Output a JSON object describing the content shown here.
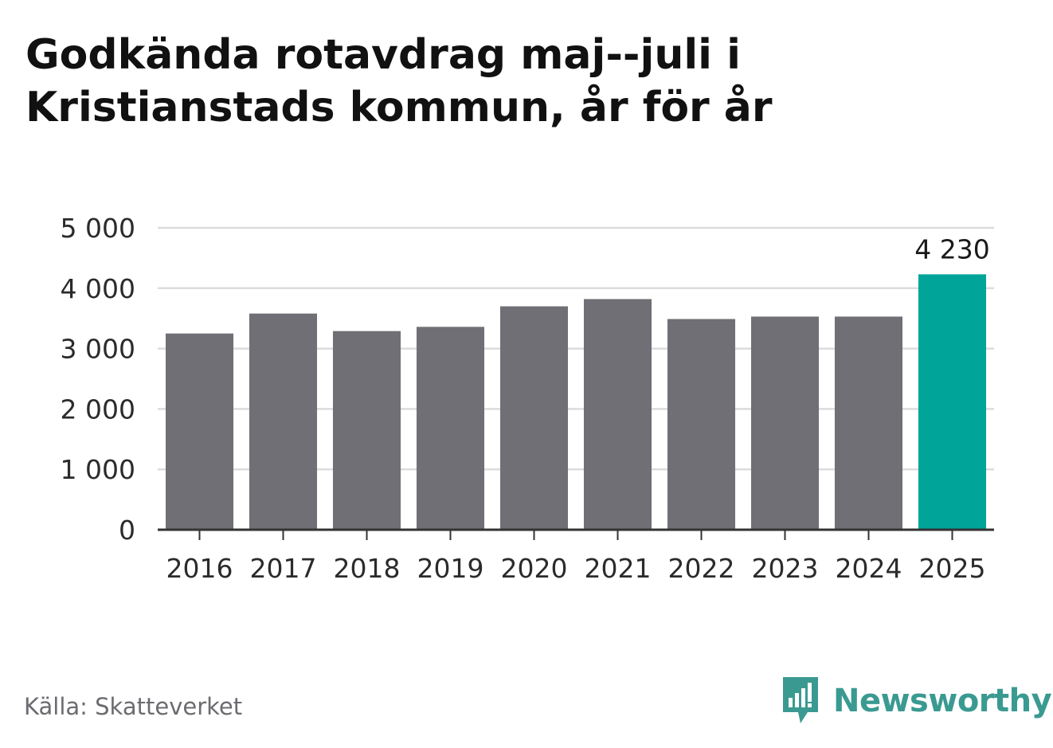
{
  "title": "Godkända rotavdrag maj--juli i Kristianstads kommun, år för år",
  "source": "Källa: Skatteverket",
  "brand": {
    "name": "Newsworthy",
    "icon": "newsworthy-logo-icon",
    "color": "#3a9a91"
  },
  "colors": {
    "bar": "#706f75",
    "highlight": "#00a499",
    "grid": "#dcdcdc",
    "axis": "#333333"
  },
  "chart_data": {
    "type": "bar",
    "title": "Godkända rotavdrag maj--juli i Kristianstads kommun, år för år",
    "xlabel": "",
    "ylabel": "",
    "categories": [
      "2016",
      "2017",
      "2018",
      "2019",
      "2020",
      "2021",
      "2022",
      "2023",
      "2024",
      "2025"
    ],
    "values": [
      3250,
      3580,
      3290,
      3360,
      3700,
      3820,
      3490,
      3530,
      3530,
      4230
    ],
    "ylim": [
      0,
      5000
    ],
    "yticks": [
      0,
      1000,
      2000,
      3000,
      4000,
      5000
    ],
    "ytick_labels": [
      "0",
      "1 000",
      "2 000",
      "3 000",
      "4 000",
      "5 000"
    ],
    "grid": true,
    "legend": "none",
    "highlight_index": 9,
    "data_labels": [
      {
        "index": 9,
        "text": "4 230"
      }
    ]
  }
}
